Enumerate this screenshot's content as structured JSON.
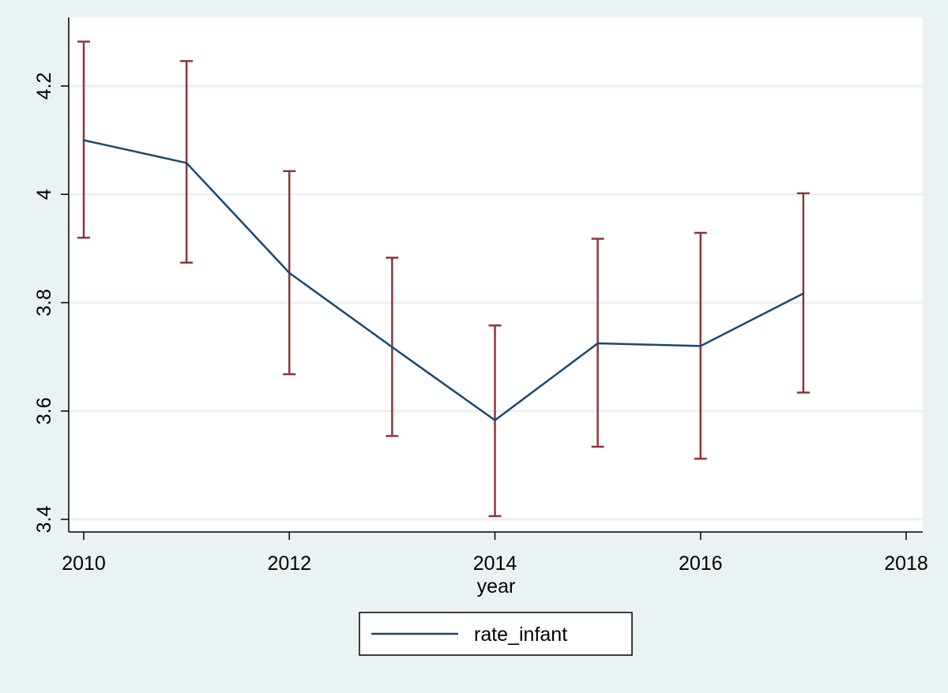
{
  "chart_data": {
    "type": "line",
    "xlabel": "year",
    "ylabel": "",
    "xlim": [
      2010,
      2018
    ],
    "ylim": [
      3.4,
      4.3
    ],
    "x_ticks": [
      2010,
      2012,
      2014,
      2016,
      2018
    ],
    "y_ticks": [
      3.4,
      3.6,
      3.8,
      4.0,
      4.2
    ],
    "x_tick_labels": [
      "2010",
      "2012",
      "2014",
      "2016",
      "2018"
    ],
    "y_tick_labels": [
      "3.4",
      "3.6",
      "3.8",
      "4",
      "4.2"
    ],
    "grid": true,
    "legend_position": "bottom",
    "series": [
      {
        "name": "rate_infant",
        "x": [
          2010,
          2011,
          2012,
          2013,
          2014,
          2015,
          2016,
          2017
        ],
        "values": [
          4.1,
          4.058,
          3.855,
          3.718,
          3.583,
          3.725,
          3.72,
          3.817
        ],
        "color": "#1a476f"
      }
    ],
    "error_bars": {
      "x": [
        2010,
        2011,
        2012,
        2013,
        2014,
        2015,
        2016,
        2017
      ],
      "upper": [
        4.282,
        4.246,
        4.043,
        3.883,
        3.758,
        3.918,
        3.929,
        4.002
      ],
      "lower": [
        3.92,
        3.874,
        3.668,
        3.554,
        3.406,
        3.534,
        3.512,
        3.634
      ],
      "color": "#90353b"
    }
  },
  "colors": {
    "page_background": "#eaf2f3",
    "plot_background": "#ffffff",
    "gridline": "#eaf2f3"
  }
}
